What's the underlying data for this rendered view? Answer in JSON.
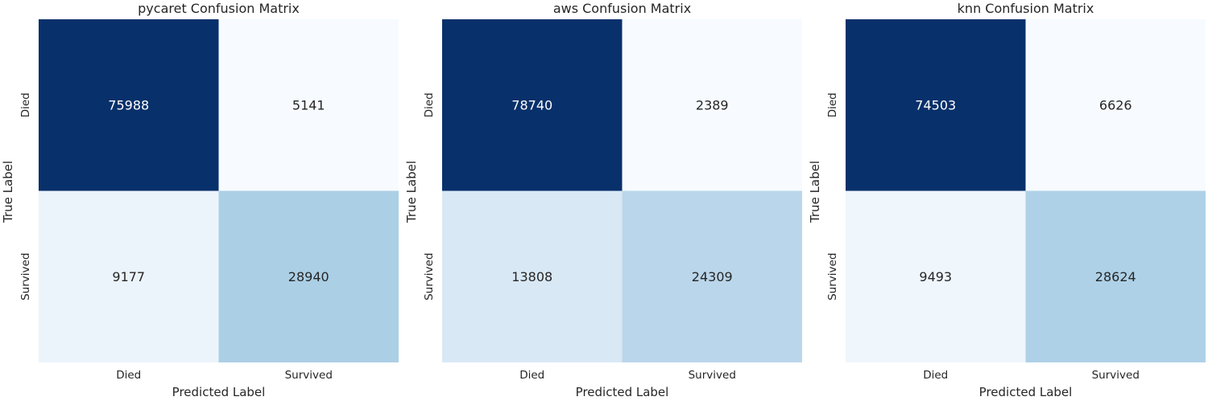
{
  "chart_data": [
    {
      "type": "heatmap",
      "title": "pycaret Confusion Matrix",
      "xlabel": "Predicted Label",
      "ylabel": "True Label",
      "x_categories": [
        "Died",
        "Survived"
      ],
      "y_categories": [
        "Died",
        "Survived"
      ],
      "values": [
        [
          75988,
          5141
        ],
        [
          9177,
          28940
        ]
      ],
      "colormap": "Blues",
      "colorbar": false,
      "grid": false
    },
    {
      "type": "heatmap",
      "title": "aws Confusion Matrix",
      "xlabel": "Predicted Label",
      "ylabel": "True Label",
      "x_categories": [
        "Died",
        "Survived"
      ],
      "y_categories": [
        "Died",
        "Survived"
      ],
      "values": [
        [
          78740,
          2389
        ],
        [
          13808,
          24309
        ]
      ],
      "colormap": "Blues",
      "colorbar": false,
      "grid": false
    },
    {
      "type": "heatmap",
      "title": "knn Confusion Matrix",
      "xlabel": "Predicted Label",
      "ylabel": "True Label",
      "x_categories": [
        "Died",
        "Survived"
      ],
      "y_categories": [
        "Died",
        "Survived"
      ],
      "values": [
        [
          74503,
          6626
        ],
        [
          9493,
          28624
        ]
      ],
      "colormap": "Blues",
      "colorbar": false,
      "grid": false
    }
  ]
}
